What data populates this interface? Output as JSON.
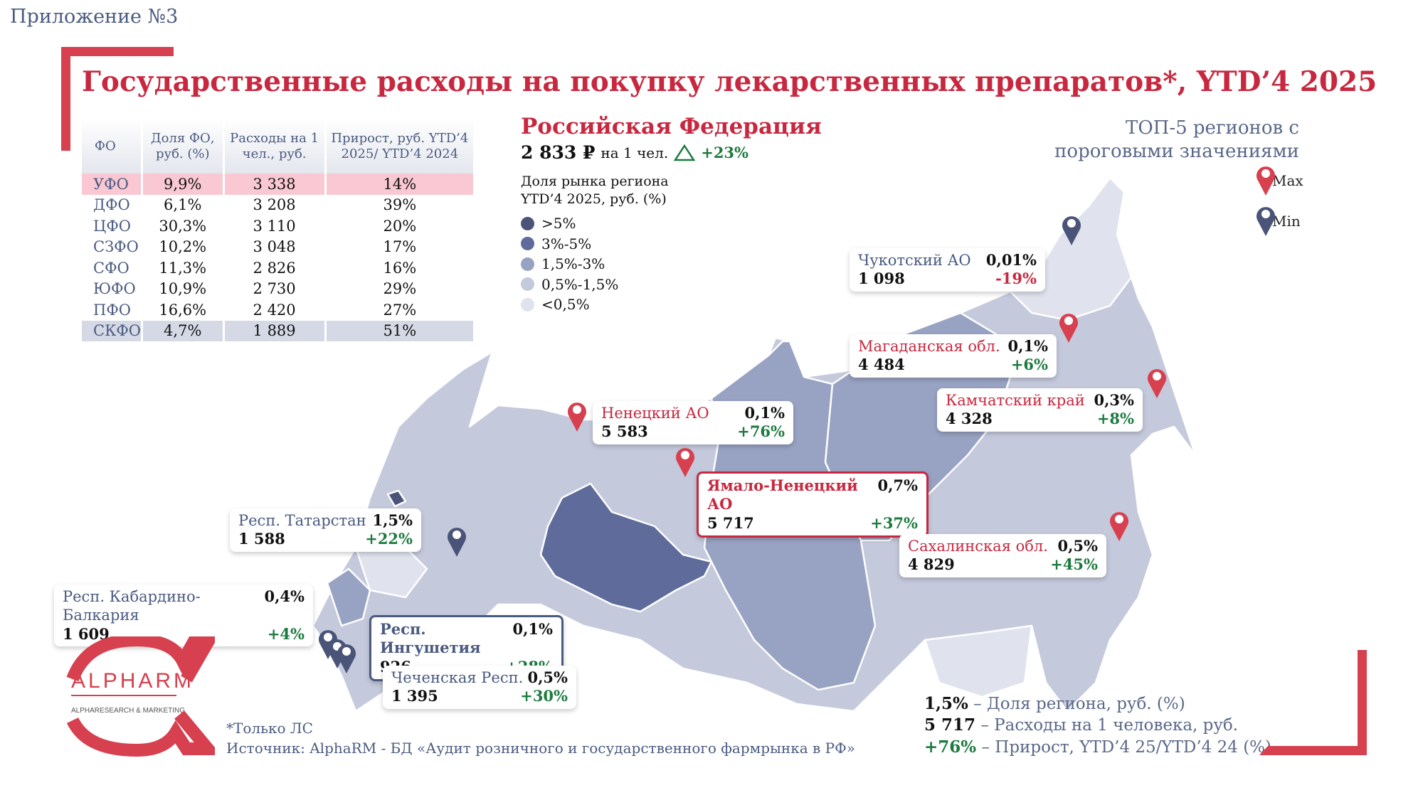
{
  "appendix": "Приложение №3",
  "title": "Государственные расходы на покупку лекарственных препаратов*, YTD’4 2025",
  "table": {
    "headers": [
      "ФО",
      "Доля ФО, руб. (%)",
      "Расходы на 1 чел., руб.",
      "Прирост, руб. YTD’4 2025/ YTD’4 2024"
    ],
    "rows": [
      [
        "УФО",
        "9,9%",
        "3 338",
        "14%"
      ],
      [
        "ДФО",
        "6,1%",
        "3 208",
        "39%"
      ],
      [
        "ЦФО",
        "30,3%",
        "3 110",
        "20%"
      ],
      [
        "СЗФО",
        "10,2%",
        "3 048",
        "17%"
      ],
      [
        "СФО",
        "11,3%",
        "2 826",
        "16%"
      ],
      [
        "ЮФО",
        "10,9%",
        "2 730",
        "29%"
      ],
      [
        "ПФО",
        "16,6%",
        "2 420",
        "27%"
      ],
      [
        "СКФО",
        "4,7%",
        "1 889",
        "51%"
      ]
    ]
  },
  "rf": {
    "heading": "Российская Федерация",
    "value": "2 833 ₽",
    "unit": "на 1 чел.",
    "growth": "+23%"
  },
  "legend": {
    "title1": "Доля рынка региона",
    "title2": "YTD’4 2025, руб. (%)",
    "items": [
      {
        "label": ">5%",
        "color": "#4a5478"
      },
      {
        "label": "3%-5%",
        "color": "#5f6b9a"
      },
      {
        "label": "1,5%-3%",
        "color": "#98a2c2"
      },
      {
        "label": "0,5%-1,5%",
        "color": "#c4c9dc"
      },
      {
        "label": "<0,5%",
        "color": "#e0e3ed"
      }
    ]
  },
  "top5": {
    "line1": "ТОП-5 регионов с",
    "line2": "пороговыми значениями",
    "max": "Max",
    "min": "Min"
  },
  "callouts": [
    {
      "name": "Чукотский АО",
      "share": "0,01%",
      "spend": "1 098",
      "growth": "-19%",
      "type": "min"
    },
    {
      "name": "Магаданская обл.",
      "share": "0,1%",
      "spend": "4 484",
      "growth": "+6%",
      "type": "max"
    },
    {
      "name": "Камчатский край",
      "share": "0,3%",
      "spend": "4 328",
      "growth": "+8%",
      "type": "max"
    },
    {
      "name": "Ненецкий АО",
      "share": "0,1%",
      "spend": "5 583",
      "growth": "+76%",
      "type": "max"
    },
    {
      "name": "Ямало-Ненецкий АО",
      "share": "0,7%",
      "spend": "5 717",
      "growth": "+37%",
      "type": "max"
    },
    {
      "name": "Сахалинская обл.",
      "share": "0,5%",
      "spend": "4 829",
      "growth": "+45%",
      "type": "max"
    },
    {
      "name": "Респ. Татарстан",
      "share": "1,5%",
      "spend": "1 588",
      "growth": "+22%",
      "type": "min"
    },
    {
      "name": "Респ. Кабардино-Балкария",
      "share": "0,4%",
      "spend": "1 609",
      "growth": "+4%",
      "type": "min"
    },
    {
      "name": "Респ. Ингушетия",
      "share": "0,1%",
      "spend": "926",
      "growth": "+28%",
      "type": "min"
    },
    {
      "name": "Чеченская Респ.",
      "share": "0,5%",
      "spend": "1 395",
      "growth": "+30%",
      "type": "min"
    }
  ],
  "logo": {
    "name": "ALPHARM",
    "tagline": "ALPHARESEARCH & MARKETING"
  },
  "footnote": "*Только ЛС",
  "source": "Источник: AlphaRM - БД «Аудит розничного и государственного фармрынка в РФ»",
  "key": [
    {
      "value": "1,5%",
      "text": " – Доля региона, руб. (%)"
    },
    {
      "value": "5 717",
      "text": " – Расходы на 1 человека, руб."
    },
    {
      "value": "+76%",
      "text": " – Прирост, YTD’4 25/YTD’4 24 (%)"
    }
  ],
  "colors": {
    "accent": "#c8283f",
    "positive": "#1c7a3f",
    "pin_max": "#d6404f",
    "pin_min": "#4a5478"
  }
}
